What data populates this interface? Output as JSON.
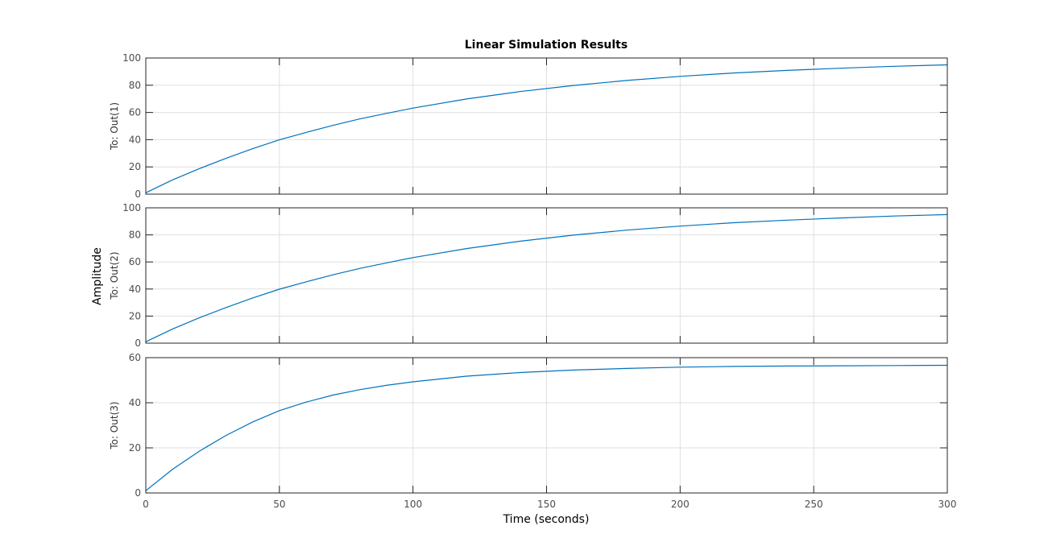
{
  "chart_data": {
    "type": "line",
    "title": "Linear Simulation Results",
    "xlabel": "Time (seconds)",
    "ylabel": "Amplitude",
    "xlim": [
      0,
      300
    ],
    "xticks": [
      0,
      50,
      100,
      150,
      200,
      250,
      300
    ],
    "grid": true,
    "line_color": "#0072BD",
    "subplots": [
      {
        "ylabel": "To: Out(1)",
        "ylim": [
          0,
          100
        ],
        "yticks": [
          0,
          20,
          40,
          60,
          80,
          100
        ],
        "x": [
          0,
          10,
          20,
          30,
          40,
          50,
          60,
          70,
          80,
          90,
          100,
          120,
          140,
          160,
          180,
          200,
          220,
          240,
          260,
          280,
          300
        ],
        "y": [
          1,
          10.5,
          18.7,
          26.3,
          33.4,
          39.9,
          45.3,
          50.5,
          55.2,
          59.3,
          63.2,
          69.9,
          75.3,
          79.8,
          83.5,
          86.5,
          89.0,
          90.9,
          92.5,
          93.9,
          95.0
        ]
      },
      {
        "ylabel": "To: Out(2)",
        "ylim": [
          0,
          100
        ],
        "yticks": [
          0,
          20,
          40,
          60,
          80,
          100
        ],
        "x": [
          0,
          10,
          20,
          30,
          40,
          50,
          60,
          70,
          80,
          90,
          100,
          120,
          140,
          160,
          180,
          200,
          220,
          240,
          260,
          280,
          300
        ],
        "y": [
          1,
          10.5,
          18.7,
          26.3,
          33.4,
          39.9,
          45.3,
          50.5,
          55.2,
          59.3,
          63.2,
          69.9,
          75.3,
          79.8,
          83.5,
          86.5,
          89.0,
          90.9,
          92.5,
          93.9,
          95.0
        ]
      },
      {
        "ylabel": "To: Out(3)",
        "ylim": [
          0,
          60
        ],
        "yticks": [
          0,
          20,
          40,
          60
        ],
        "x": [
          0,
          10,
          20,
          30,
          40,
          50,
          60,
          70,
          80,
          90,
          100,
          120,
          140,
          160,
          180,
          200,
          220,
          240,
          260,
          280,
          300
        ],
        "y": [
          1,
          10.5,
          18.5,
          25.5,
          31.5,
          36.5,
          40.3,
          43.4,
          45.8,
          47.7,
          49.3,
          51.8,
          53.4,
          54.5,
          55.2,
          55.8,
          56.1,
          56.3,
          56.4,
          56.5,
          56.6
        ]
      }
    ]
  }
}
